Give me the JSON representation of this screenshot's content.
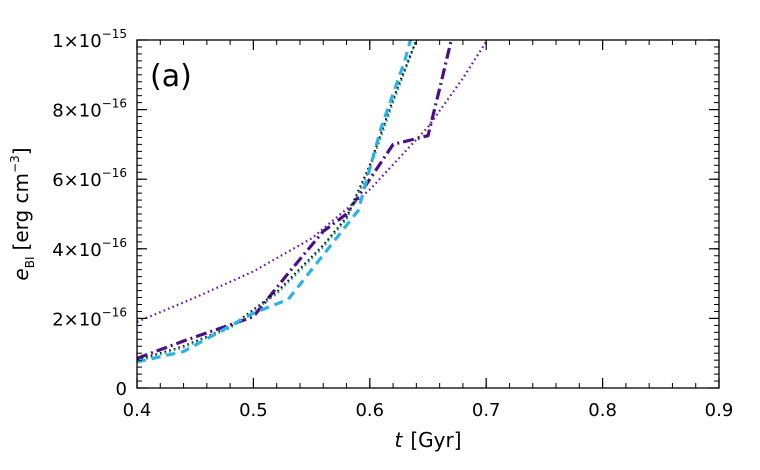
{
  "chart_data": {
    "type": "line",
    "panel_label": "(a)",
    "xlabel": {
      "variable": "t",
      "unit": "[Gyr]"
    },
    "ylabel": {
      "variable": "e",
      "subscript": "BI",
      "unit_open": "[erg cm",
      "unit_exponent": "−3",
      "unit_close": "]"
    },
    "xlim": [
      0.4,
      0.9
    ],
    "ylim": [
      0,
      1e-15
    ],
    "x_ticks": [
      {
        "value": 0.4,
        "label": "0.4"
      },
      {
        "value": 0.5,
        "label": "0.5"
      },
      {
        "value": 0.6,
        "label": "0.6"
      },
      {
        "value": 0.7,
        "label": "0.7"
      },
      {
        "value": 0.8,
        "label": "0.8"
      },
      {
        "value": 0.9,
        "label": "0.9"
      }
    ],
    "y_ticks": [
      {
        "value": 0,
        "mantissa": "0",
        "exponent": ""
      },
      {
        "value": 2e-16,
        "mantissa": "2×10",
        "exponent": "−16"
      },
      {
        "value": 4e-16,
        "mantissa": "4×10",
        "exponent": "−16"
      },
      {
        "value": 6e-16,
        "mantissa": "6×10",
        "exponent": "−16"
      },
      {
        "value": 8e-16,
        "mantissa": "8×10",
        "exponent": "−16"
      },
      {
        "value": 1e-15,
        "mantissa": "1×10",
        "exponent": "−15"
      }
    ],
    "x_minor_step": 0.02,
    "y_minor_step": 2e-17,
    "series": [
      {
        "name": "dotted-purple",
        "color": "#6a0dad",
        "style": "dotted",
        "x": [
          0.4,
          0.45,
          0.5,
          0.55,
          0.6,
          0.65,
          0.68,
          0.7
        ],
        "y": [
          1.9e-16,
          2.6e-16,
          3.35e-16,
          4.3e-16,
          5.7e-16,
          7.5e-16,
          8.9e-16,
          9.95e-16
        ]
      },
      {
        "name": "dashdot-purple",
        "color": "#4b0f85",
        "style": "dashdot",
        "x": [
          0.4,
          0.44,
          0.5,
          0.53,
          0.56,
          0.58,
          0.6,
          0.62,
          0.65,
          0.66,
          0.67
        ],
        "y": [
          8.5e-17,
          1.35e-16,
          2.05e-16,
          3.3e-16,
          4.5e-16,
          5e-16,
          6e-16,
          7e-16,
          7.25e-16,
          8.6e-16,
          1e-15
        ]
      },
      {
        "name": "dotted-black",
        "color": "#000000",
        "style": "dotted",
        "x": [
          0.4,
          0.44,
          0.48,
          0.52,
          0.56,
          0.58,
          0.6,
          0.62,
          0.64
        ],
        "y": [
          8e-17,
          1.2e-16,
          1.75e-16,
          2.75e-16,
          4.1e-16,
          4.9e-16,
          6.4e-16,
          8.3e-16,
          1e-15
        ]
      },
      {
        "name": "dotted-teal",
        "color": "#2a9d8f",
        "style": "dotted",
        "x": [
          0.4,
          0.44,
          0.48,
          0.52,
          0.56,
          0.58,
          0.6,
          0.62,
          0.64
        ],
        "y": [
          7.6e-17,
          1.17e-16,
          1.72e-16,
          2.7e-16,
          4.05e-16,
          4.85e-16,
          6.3e-16,
          8.2e-16,
          1e-15
        ]
      },
      {
        "name": "dashed-cyan",
        "color": "#2bb3e6",
        "style": "dashed",
        "x": [
          0.4,
          0.44,
          0.5,
          0.53,
          0.59,
          0.61,
          0.63,
          0.635
        ],
        "y": [
          7.5e-17,
          1.05e-16,
          2.15e-16,
          2.55e-16,
          5.1e-16,
          7.5e-16,
          9.4e-16,
          1e-15
        ]
      }
    ]
  }
}
